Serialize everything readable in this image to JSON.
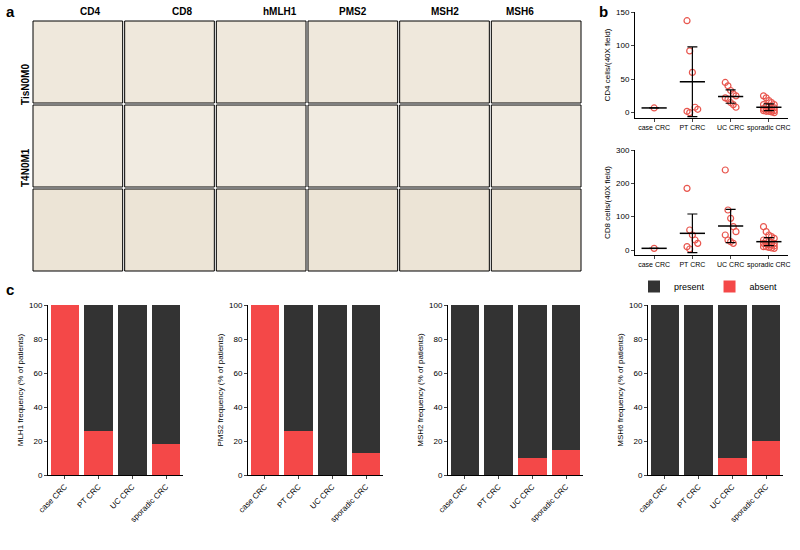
{
  "image_panel": {
    "panel_label": "a",
    "columns": [
      "CD4",
      "CD8",
      "hMLH1",
      "PMS2",
      "MSH2",
      "MSH6"
    ],
    "rows": [
      "TisN0M0",
      "T4N0M1",
      null
    ]
  },
  "chart_data": [
    {
      "type": "scatter",
      "panel_label": "b",
      "ylabel": "CD4 cells/(40X field)",
      "categories": [
        "case CRC",
        "PT CRC",
        "UC CRC",
        "sporadic CRC"
      ],
      "points": [
        [
          7
        ],
        [
          137,
          92,
          60,
          8,
          5,
          2,
          0
        ],
        [
          45,
          40,
          33,
          28,
          25,
          22,
          20,
          15,
          12,
          8
        ],
        [
          25,
          22,
          18,
          15,
          12,
          12,
          10,
          8,
          8,
          7,
          6,
          5,
          5,
          4,
          3,
          3,
          2,
          2,
          1,
          0
        ]
      ],
      "means": [
        7,
        46,
        24,
        8
      ],
      "errors": [
        0,
        52,
        10,
        5
      ],
      "color": "#e8564e",
      "marker": "open circle",
      "ylim": [
        -8,
        150
      ],
      "yticks": [
        0,
        50,
        100,
        150
      ]
    },
    {
      "type": "scatter",
      "ylabel": "CD8 cells/(40X field)",
      "categories": [
        "case CRC",
        "PT CRC",
        "UC CRC",
        "sporadic CRC"
      ],
      "points": [
        [
          5
        ],
        [
          185,
          60,
          45,
          30,
          20,
          10,
          3
        ],
        [
          240,
          120,
          95,
          70,
          55,
          45,
          30,
          25,
          20
        ],
        [
          70,
          55,
          45,
          40,
          35,
          30,
          28,
          25,
          22,
          20,
          20,
          18,
          15,
          15,
          12,
          10,
          10,
          8,
          6,
          5
        ]
      ],
      "means": [
        5,
        50,
        72,
        25
      ],
      "errors": [
        0,
        58,
        50,
        12
      ],
      "color": "#e8564e",
      "marker": "open circle",
      "ylim": [
        -15,
        300
      ],
      "yticks": [
        0,
        100,
        200,
        300
      ]
    },
    {
      "type": "bar",
      "panel_label": "c",
      "stacked": true,
      "ylabel": "MLH1 frequency (% of patients)",
      "categories": [
        "case CRC",
        "PT CRC",
        "UC CRC",
        "sporadic CRC"
      ],
      "series": [
        {
          "name": "absent",
          "color": "#f44848",
          "values": [
            100,
            26,
            0,
            18
          ]
        },
        {
          "name": "present",
          "color": "#333333",
          "values": [
            0,
            74,
            100,
            82
          ]
        }
      ],
      "ylim": [
        0,
        100
      ],
      "yticks": [
        0,
        20,
        40,
        60,
        80,
        100
      ]
    },
    {
      "type": "bar",
      "stacked": true,
      "ylabel": "PMS2 frequency (% of patients)",
      "categories": [
        "case CRC",
        "PT CRC",
        "UC CRC",
        "sporadic CRC"
      ],
      "series": [
        {
          "name": "absent",
          "color": "#f44848",
          "values": [
            100,
            26,
            0,
            13
          ]
        },
        {
          "name": "present",
          "color": "#333333",
          "values": [
            0,
            74,
            100,
            87
          ]
        }
      ],
      "ylim": [
        0,
        100
      ],
      "yticks": [
        0,
        20,
        40,
        60,
        80,
        100
      ]
    },
    {
      "type": "bar",
      "stacked": true,
      "ylabel": "MSH2 frequency (% of patients)",
      "categories": [
        "case CRC",
        "PT CRC",
        "UC CRC",
        "sporadic CRC"
      ],
      "series": [
        {
          "name": "absent",
          "color": "#f44848",
          "values": [
            0,
            0,
            10,
            15
          ]
        },
        {
          "name": "present",
          "color": "#333333",
          "values": [
            100,
            100,
            90,
            85
          ]
        }
      ],
      "ylim": [
        0,
        100
      ],
      "yticks": [
        0,
        20,
        40,
        60,
        80,
        100
      ]
    },
    {
      "type": "bar",
      "stacked": true,
      "ylabel": "MSH6 frequency (% of patients)",
      "categories": [
        "case CRC",
        "PT CRC",
        "UC CRC",
        "sporadic CRC"
      ],
      "series": [
        {
          "name": "absent",
          "color": "#f44848",
          "values": [
            0,
            0,
            10,
            20
          ]
        },
        {
          "name": "present",
          "color": "#333333",
          "values": [
            100,
            100,
            90,
            80
          ]
        }
      ],
      "ylim": [
        0,
        100
      ],
      "yticks": [
        0,
        20,
        40,
        60,
        80,
        100
      ],
      "legend": "top right"
    }
  ]
}
